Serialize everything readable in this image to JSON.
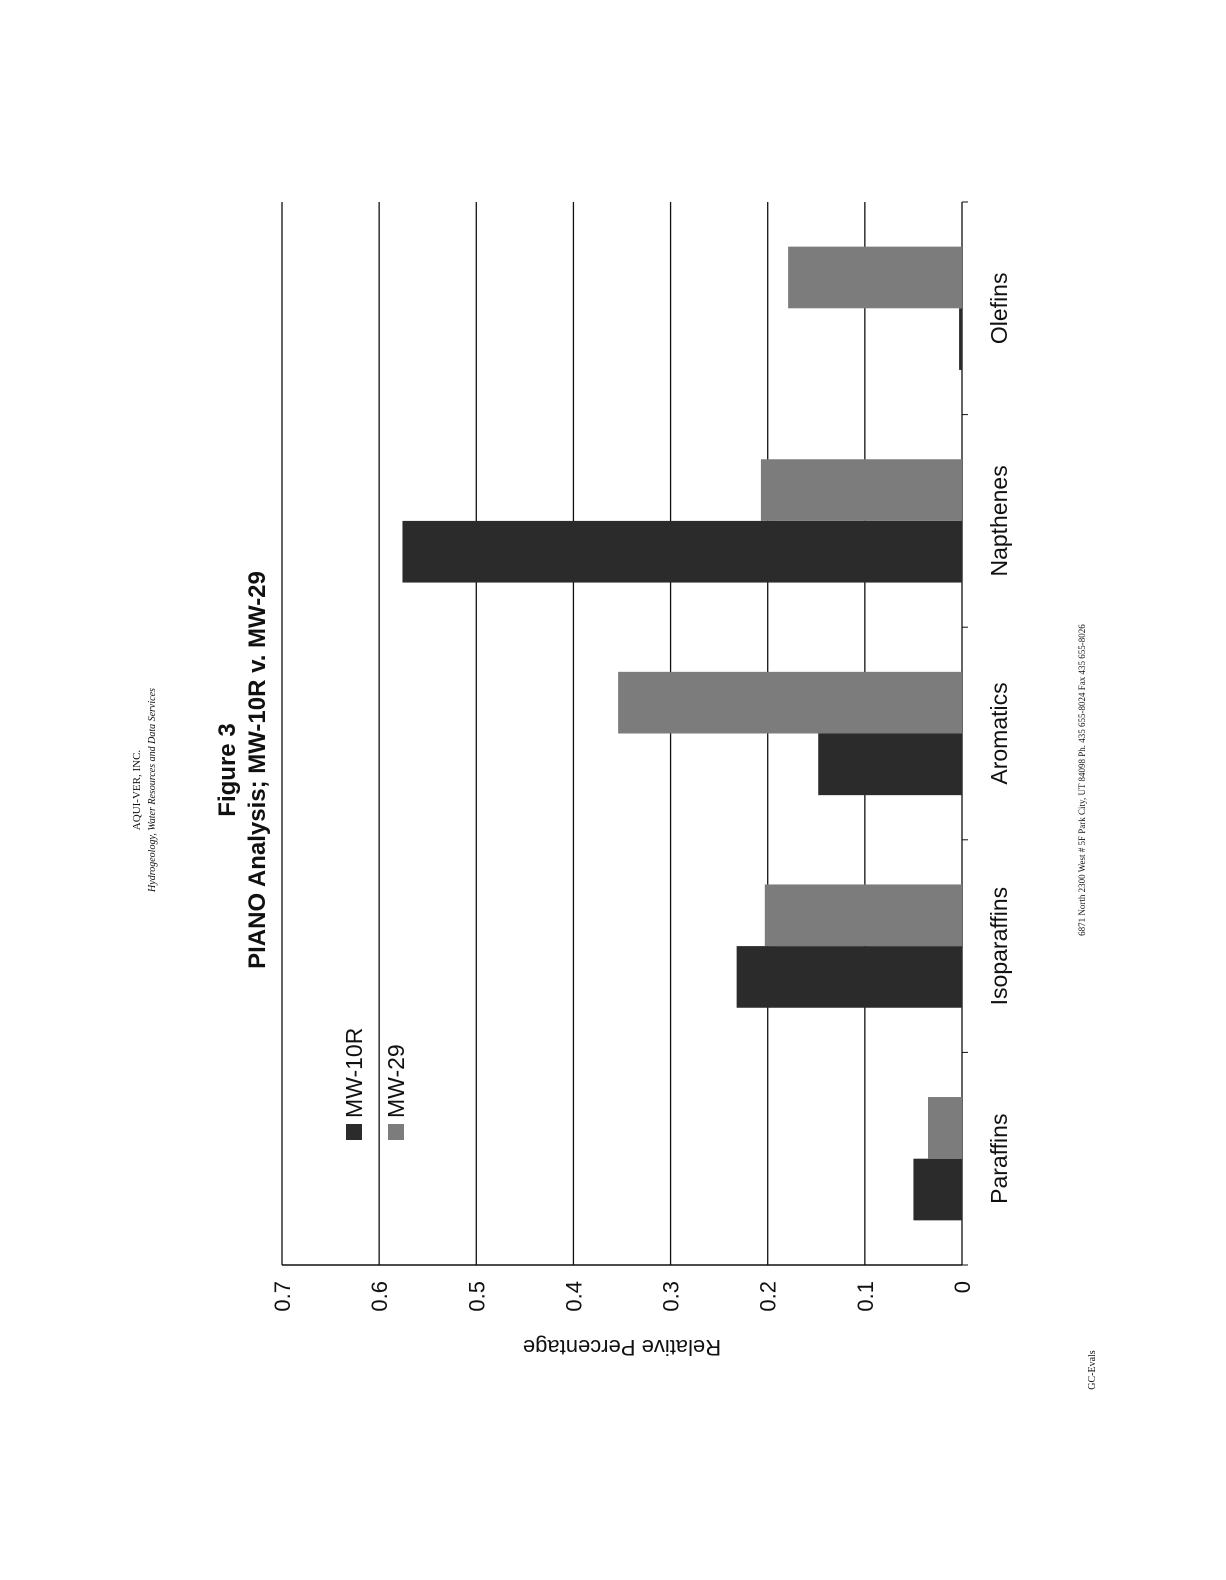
{
  "header": {
    "company": "AQUI-VER, INC.",
    "tagline": "Hydrogeology, Water Resources and Data Services"
  },
  "chart_data": {
    "type": "bar",
    "title": "Figure 3",
    "subtitle": "PIANO Analysis; MW-10R v. MW-29",
    "y_label": "Relative Percentage",
    "categories": [
      "Paraffins",
      "Isoparaffins",
      "Aromatics",
      "Napthenes",
      "Olefins"
    ],
    "series": [
      {
        "name": "MW-10R",
        "color": "#2b2b2b",
        "values": [
          0.05,
          0.232,
          0.148,
          0.576,
          0.003
        ]
      },
      {
        "name": "MW-29",
        "color": "#7c7c7c",
        "values": [
          0.035,
          0.203,
          0.354,
          0.207,
          0.179
        ]
      }
    ],
    "ylim": [
      0,
      0.7
    ],
    "yticks": [
      0,
      0.1,
      0.2,
      0.3,
      0.4,
      0.5,
      0.6,
      0.7
    ],
    "grid": true
  },
  "footer": {
    "address": "6871 North 2300 West # 5F Park City, UT 84098  Ph. 435 655-8024  Fax 435 655-8026",
    "doc_id": "GC-Evals"
  }
}
